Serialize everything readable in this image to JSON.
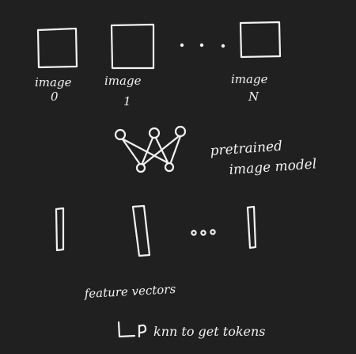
{
  "images": [
    {
      "label": "image",
      "index": "0"
    },
    {
      "label": "image",
      "index": "1"
    },
    {
      "label": "image",
      "index": "N"
    }
  ],
  "model_label_line1": "pretrained",
  "model_label_line2": "image model",
  "features_label": "feature vectors",
  "knn_label": "knn to get tokens",
  "colors": {
    "background": "#202020",
    "ink": "#f2f2f2"
  }
}
